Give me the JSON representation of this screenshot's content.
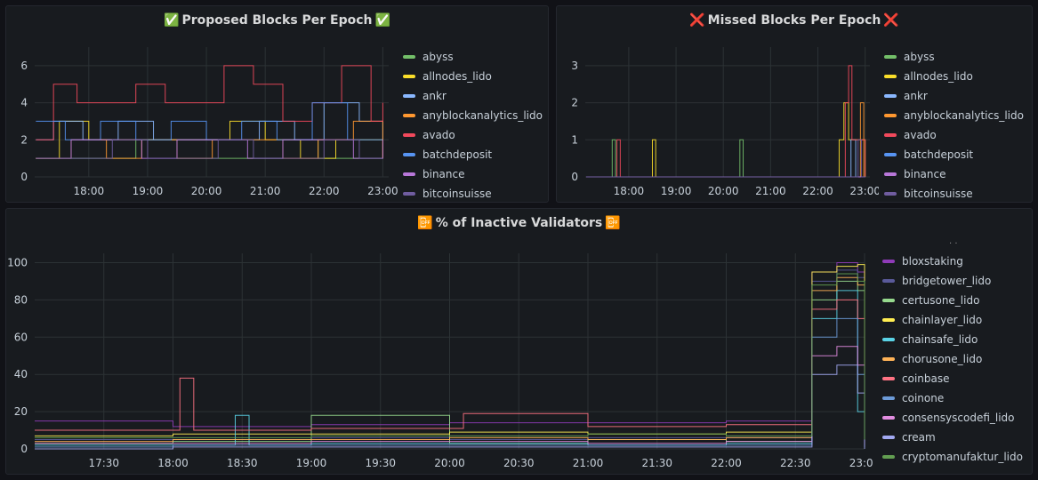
{
  "panels": {
    "proposed": {
      "title": "Proposed Blocks Per Epoch",
      "title_icon": "✅",
      "title_icon_name": "check-mark-icon",
      "legend": [
        {
          "label": "abyss",
          "color": "#73bf69"
        },
        {
          "label": "allnodes_lido",
          "color": "#fade2a"
        },
        {
          "label": "ankr",
          "color": "#8ab8ff"
        },
        {
          "label": "anyblockanalytics_lido",
          "color": "#ff9830"
        },
        {
          "label": "avado",
          "color": "#f2495c"
        },
        {
          "label": "batchdeposit",
          "color": "#5794f2"
        },
        {
          "label": "binance",
          "color": "#b877d9"
        },
        {
          "label": "bitcoinsuisse",
          "color": "#705da0"
        }
      ]
    },
    "missed": {
      "title": "Missed Blocks Per Epoch",
      "title_icon": "❌",
      "title_icon_name": "cross-mark-icon",
      "legend": [
        {
          "label": "abyss",
          "color": "#73bf69"
        },
        {
          "label": "allnodes_lido",
          "color": "#fade2a"
        },
        {
          "label": "ankr",
          "color": "#8ab8ff"
        },
        {
          "label": "anyblockanalytics_lido",
          "color": "#ff9830"
        },
        {
          "label": "avado",
          "color": "#f2495c"
        },
        {
          "label": "batchdeposit",
          "color": "#5794f2"
        },
        {
          "label": "binance",
          "color": "#b877d9"
        },
        {
          "label": "bitcoinsuisse",
          "color": "#705da0"
        }
      ]
    },
    "inactive": {
      "title": "% of Inactive Validators",
      "title_icon": "📴",
      "title_icon_name": "mobile-off-icon",
      "legend": [
        {
          "label": "bloxstaking",
          "color": "#8f3bb8"
        },
        {
          "label": "bridgetower_lido",
          "color": "#5a5a9a"
        },
        {
          "label": "certusone_lido",
          "color": "#96d98d"
        },
        {
          "label": "chainlayer_lido",
          "color": "#ffee52"
        },
        {
          "label": "chainsafe_lido",
          "color": "#5ad3e6"
        },
        {
          "label": "chorusone_lido",
          "color": "#ffb357"
        },
        {
          "label": "coinbase",
          "color": "#ff7383"
        },
        {
          "label": "coinone",
          "color": "#6c9bd8"
        },
        {
          "label": "consensyscodefi_lido",
          "color": "#e28de0"
        },
        {
          "label": "cream",
          "color": "#a2a9f2"
        },
        {
          "label": "cryptomanufaktur_lido",
          "color": "#629e51"
        }
      ]
    }
  },
  "chart_data": [
    {
      "type": "line",
      "title": "✅ Proposed Blocks Per Epoch ✅",
      "x_ticks": [
        "18:00",
        "19:00",
        "20:00",
        "21:00",
        "22:00",
        "23:00"
      ],
      "y_ticks": [
        "0",
        "2",
        "4",
        "6"
      ],
      "ylim": [
        0,
        7
      ],
      "xlim_hours": [
        17.08,
        23.1
      ],
      "grid": true,
      "legend_position": "right",
      "series": [
        {
          "name": "abyss",
          "x_hours": [
            17.1,
            17.6,
            18.2,
            18.8,
            19.5,
            20.1,
            20.7,
            21.3,
            21.9,
            22.5,
            23.0
          ],
          "values": [
            1,
            1,
            1,
            2,
            1,
            1,
            1,
            2,
            1,
            1,
            1
          ]
        },
        {
          "name": "allnodes_lido",
          "x_hours": [
            17.1,
            17.5,
            18.0,
            18.6,
            19.2,
            19.8,
            20.4,
            21.0,
            21.6,
            22.2,
            22.8,
            23.0
          ],
          "values": [
            1,
            3,
            2,
            2,
            2,
            2,
            3,
            2,
            1,
            2,
            2,
            1
          ]
        },
        {
          "name": "ankr",
          "x_hours": [
            17.1,
            17.4,
            17.9,
            18.5,
            19.1,
            19.7,
            20.3,
            20.9,
            21.5,
            22.0,
            22.6,
            23.0
          ],
          "values": [
            2,
            3,
            2,
            3,
            2,
            2,
            2,
            3,
            2,
            4,
            3,
            2
          ]
        },
        {
          "name": "anyblockanalytics_lido",
          "x_hours": [
            17.1,
            17.7,
            18.3,
            18.9,
            19.5,
            20.1,
            20.7,
            21.3,
            21.9,
            22.5,
            23.0
          ],
          "values": [
            1,
            2,
            1,
            2,
            1,
            2,
            2,
            1,
            2,
            3,
            1
          ]
        },
        {
          "name": "avado",
          "x_hours": [
            17.1,
            17.4,
            17.8,
            18.3,
            18.8,
            19.3,
            19.8,
            20.3,
            20.8,
            21.3,
            21.8,
            22.3,
            22.8,
            23.0
          ],
          "values": [
            2,
            5,
            4,
            4,
            5,
            4,
            4,
            6,
            5,
            3,
            4,
            6,
            3,
            4
          ]
        },
        {
          "name": "batchdeposit",
          "x_hours": [
            17.1,
            17.6,
            18.2,
            18.8,
            19.4,
            20.0,
            20.6,
            21.2,
            21.8,
            22.4,
            23.0
          ],
          "values": [
            3,
            2,
            3,
            2,
            3,
            2,
            3,
            2,
            4,
            2,
            2
          ]
        },
        {
          "name": "binance",
          "x_hours": [
            17.1,
            17.7,
            18.3,
            18.9,
            19.5,
            20.1,
            20.7,
            21.3,
            21.9,
            22.5,
            23.0
          ],
          "values": [
            1,
            2,
            2,
            1,
            2,
            2,
            1,
            2,
            2,
            1,
            2
          ]
        },
        {
          "name": "bitcoinsuisse",
          "x_hours": [
            17.1,
            17.8,
            18.4,
            19.0,
            19.6,
            20.2,
            20.8,
            21.4,
            22.0,
            22.6,
            23.0
          ],
          "values": [
            1,
            1,
            2,
            1,
            1,
            2,
            1,
            1,
            2,
            1,
            1
          ]
        }
      ]
    },
    {
      "type": "line",
      "title": "❌ Missed Blocks Per Epoch ❌",
      "x_ticks": [
        "18:00",
        "19:00",
        "20:00",
        "21:00",
        "22:00",
        "23:00"
      ],
      "y_ticks": [
        "0",
        "1",
        "2",
        "3"
      ],
      "ylim": [
        0,
        3.5
      ],
      "xlim_hours": [
        17.08,
        23.1
      ],
      "grid": true,
      "legend_position": "right",
      "series": [
        {
          "name": "abyss",
          "x_hours": [
            17.1,
            17.65,
            17.72,
            20.35,
            20.42,
            23.0
          ],
          "values": [
            0,
            1,
            0,
            1,
            0,
            0
          ]
        },
        {
          "name": "allnodes_lido",
          "x_hours": [
            17.1,
            18.5,
            18.57,
            22.45,
            22.55,
            22.65,
            23.0
          ],
          "values": [
            0,
            1,
            0,
            1,
            2,
            1,
            0
          ]
        },
        {
          "name": "ankr",
          "x_hours": [
            17.1,
            22.7,
            22.8,
            23.0
          ],
          "values": [
            0,
            1,
            0,
            0
          ]
        },
        {
          "name": "anyblockanalytics_lido",
          "x_hours": [
            17.1,
            22.9,
            22.97,
            23.0
          ],
          "values": [
            0,
            2,
            0,
            0
          ]
        },
        {
          "name": "avado",
          "x_hours": [
            17.1,
            17.75,
            17.82,
            22.58,
            22.65,
            22.72,
            23.0
          ],
          "values": [
            0,
            1,
            0,
            2,
            3,
            1,
            0
          ]
        },
        {
          "name": "batchdeposit",
          "x_hours": [
            17.1,
            23.0
          ],
          "values": [
            0,
            0
          ]
        },
        {
          "name": "binance",
          "x_hours": [
            17.1,
            23.0
          ],
          "values": [
            0,
            0
          ]
        },
        {
          "name": "bitcoinsuisse",
          "x_hours": [
            17.1,
            22.85,
            22.92,
            23.0
          ],
          "values": [
            0,
            1,
            0,
            0
          ]
        }
      ]
    },
    {
      "type": "line",
      "title": "📴 % of Inactive Validators 📴",
      "x_ticks": [
        "17:30",
        "18:00",
        "18:30",
        "19:00",
        "19:30",
        "20:00",
        "20:30",
        "21:00",
        "21:30",
        "22:00",
        "22:30",
        "23:00"
      ],
      "y_ticks": [
        "0",
        "20",
        "40",
        "60",
        "80",
        "100"
      ],
      "ylim": [
        0,
        105
      ],
      "xlim_hours": [
        17.0,
        23.0
      ],
      "grid": true,
      "legend_position": "right",
      "series": [
        {
          "name": "bloxstaking",
          "x_hours": [
            17.0,
            18.0,
            19.0,
            20.0,
            21.0,
            22.0,
            22.55,
            22.62,
            22.8,
            22.95,
            23.0
          ],
          "values": [
            15,
            12,
            13,
            14,
            14,
            15,
            15,
            95,
            100,
            95,
            5
          ]
        },
        {
          "name": "bridgetower_lido",
          "x_hours": [
            17.0,
            18.0,
            19.0,
            20.0,
            21.0,
            22.0,
            22.55,
            22.62,
            22.8,
            22.95,
            23.0
          ],
          "values": [
            5,
            5,
            6,
            5,
            6,
            6,
            6,
            90,
            96,
            92,
            4
          ]
        },
        {
          "name": "certusone_lido",
          "x_hours": [
            17.0,
            18.0,
            19.0,
            20.0,
            21.0,
            22.0,
            22.55,
            22.62,
            22.8,
            22.95,
            23.0
          ],
          "values": [
            3,
            4,
            18,
            3,
            5,
            4,
            4,
            80,
            90,
            85,
            2
          ]
        },
        {
          "name": "chainlayer_lido",
          "x_hours": [
            17.0,
            18.0,
            19.0,
            20.0,
            21.0,
            22.0,
            22.55,
            22.62,
            22.8,
            22.95,
            23.0
          ],
          "values": [
            7,
            8,
            8,
            9,
            8,
            9,
            9,
            95,
            98,
            99,
            6
          ]
        },
        {
          "name": "chainsafe_lido",
          "x_hours": [
            17.0,
            18.0,
            18.45,
            18.55,
            19.0,
            20.0,
            21.0,
            22.0,
            22.55,
            22.62,
            22.8,
            22.95,
            23.0
          ],
          "values": [
            2,
            2,
            18,
            2,
            3,
            3,
            2,
            3,
            3,
            70,
            85,
            20,
            1
          ]
        },
        {
          "name": "chorusone_lido",
          "x_hours": [
            17.0,
            18.0,
            19.0,
            20.0,
            21.0,
            22.0,
            22.55,
            22.62,
            22.8,
            22.95,
            23.0
          ],
          "values": [
            4,
            5,
            5,
            6,
            5,
            6,
            6,
            85,
            92,
            88,
            3
          ]
        },
        {
          "name": "coinbase",
          "x_hours": [
            17.0,
            17.95,
            18.05,
            18.15,
            19.0,
            20.0,
            20.1,
            21.0,
            22.0,
            22.55,
            22.62,
            22.8,
            22.95,
            23.0
          ],
          "values": [
            10,
            10,
            38,
            10,
            11,
            11,
            19,
            12,
            13,
            13,
            75,
            80,
            70,
            8
          ]
        },
        {
          "name": "coinone",
          "x_hours": [
            17.0,
            18.0,
            19.0,
            20.0,
            21.0,
            22.0,
            22.55,
            22.62,
            22.8,
            22.95,
            23.0
          ],
          "values": [
            1,
            2,
            2,
            2,
            2,
            2,
            2,
            60,
            70,
            40,
            1
          ]
        },
        {
          "name": "consensyscodefi_lido",
          "x_hours": [
            17.0,
            18.0,
            19.0,
            20.0,
            21.0,
            22.0,
            22.55,
            22.62,
            22.8,
            22.95,
            23.0
          ],
          "values": [
            3,
            3,
            4,
            4,
            3,
            4,
            4,
            50,
            55,
            45,
            2
          ]
        },
        {
          "name": "cream",
          "x_hours": [
            17.0,
            18.0,
            19.0,
            20.0,
            21.0,
            22.0,
            22.55,
            22.62,
            22.8,
            22.95,
            23.0
          ],
          "values": [
            0,
            1,
            1,
            1,
            1,
            1,
            1,
            40,
            45,
            30,
            0
          ]
        },
        {
          "name": "cryptomanufaktur_lido",
          "x_hours": [
            17.0,
            18.0,
            19.0,
            20.0,
            21.0,
            22.0,
            22.55,
            22.62,
            22.8,
            22.95,
            23.0
          ],
          "values": [
            6,
            6,
            7,
            7,
            8,
            7,
            7,
            88,
            94,
            90,
            5
          ]
        }
      ]
    }
  ]
}
